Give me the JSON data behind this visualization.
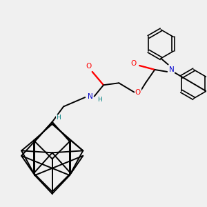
{
  "background_color": "#f0f0f0",
  "bond_color": "#000000",
  "atom_colors": {
    "O": "#ff0000",
    "N": "#0000cd",
    "H": "#008080"
  },
  "figsize": [
    3.0,
    3.0
  ],
  "dpi": 100
}
